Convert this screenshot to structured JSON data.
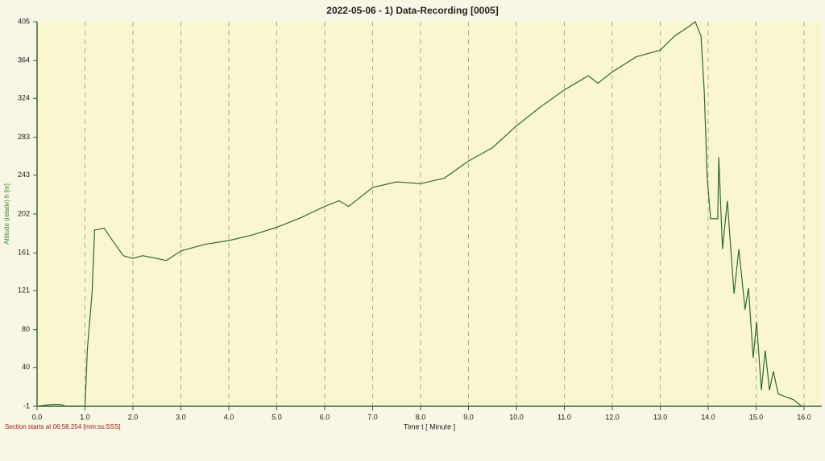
{
  "chart_data": {
    "type": "line",
    "title": "2022-05-06 - 1) Data-Recording [0005]",
    "xlabel": "Time  t  [ Minute ]",
    "ylabel": "Altitude (relativ)  h   [m]",
    "footnote": "Section starts at  06:58.254 [mm:ss:SSS]",
    "color": "#2f6a2f",
    "grid": true,
    "xlim": [
      0,
      16.37
    ],
    "ylim": [
      -1,
      405
    ],
    "xticks": [
      {
        "value": 0,
        "label": "0.0"
      },
      {
        "value": 1,
        "label": "1.0"
      },
      {
        "value": 2,
        "label": "2.0"
      },
      {
        "value": 3,
        "label": "3.0"
      },
      {
        "value": 4,
        "label": "4.0"
      },
      {
        "value": 5,
        "label": "5.0"
      },
      {
        "value": 6,
        "label": "6.0"
      },
      {
        "value": 7,
        "label": "7.0"
      },
      {
        "value": 8,
        "label": "8.0"
      },
      {
        "value": 9,
        "label": "9.0"
      },
      {
        "value": 10,
        "label": "10.0"
      },
      {
        "value": 11,
        "label": "11.0"
      },
      {
        "value": 12,
        "label": "12.0"
      },
      {
        "value": 13,
        "label": "13.0"
      },
      {
        "value": 14,
        "label": "14.0"
      },
      {
        "value": 15,
        "label": "15.0"
      },
      {
        "value": 16,
        "label": "16.0"
      }
    ],
    "yticks": [
      -1,
      40,
      80,
      121,
      161,
      202,
      243,
      283,
      324,
      364,
      405
    ],
    "x": [
      0,
      0.3,
      0.5,
      0.6,
      1.0,
      1.05,
      1.15,
      1.2,
      1.4,
      1.6,
      1.8,
      2.0,
      2.2,
      2.5,
      2.7,
      3.0,
      3.5,
      4.0,
      4.5,
      5.0,
      5.5,
      6.0,
      6.3,
      6.5,
      7.0,
      7.5,
      8.0,
      8.5,
      9.0,
      9.5,
      10.0,
      10.5,
      11.0,
      11.5,
      11.7,
      12.0,
      12.5,
      13.0,
      13.3,
      13.6,
      13.73,
      13.85,
      13.92,
      13.98,
      14.05,
      14.2,
      14.22,
      14.3,
      14.4,
      14.54,
      14.64,
      14.77,
      14.84,
      14.94,
      15.01,
      15.11,
      15.19,
      15.28,
      15.36,
      15.46,
      15.78,
      15.95,
      16.0
    ],
    "values": [
      -1,
      1,
      1,
      -1,
      -1,
      60,
      120,
      185,
      187,
      172,
      158,
      155,
      158,
      155,
      153,
      163,
      170,
      174,
      180,
      188,
      198,
      210,
      216,
      210,
      230,
      236,
      234,
      240,
      258,
      272,
      295,
      315,
      333,
      348,
      340,
      352,
      368,
      375,
      390,
      400,
      405,
      390,
      330,
      240,
      197,
      197,
      262,
      165,
      216,
      118,
      165,
      101,
      124,
      50,
      88,
      16,
      58,
      16,
      36,
      12,
      6,
      -1,
      -1
    ]
  }
}
